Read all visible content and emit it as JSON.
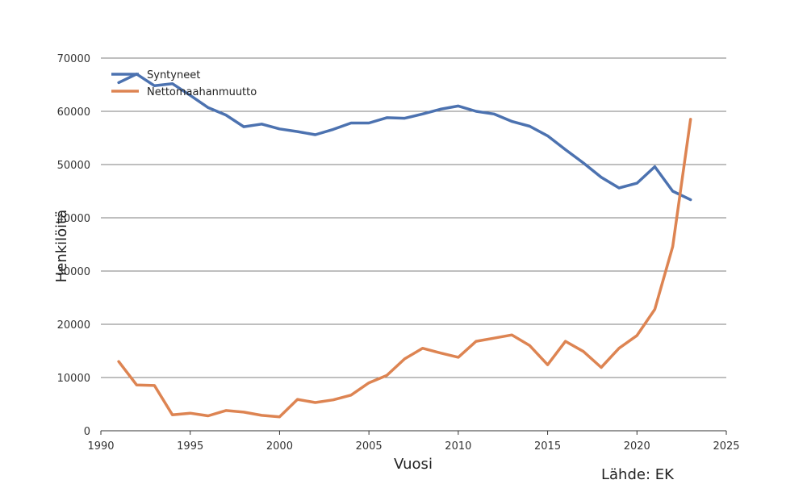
{
  "chart_data": {
    "type": "line",
    "xlabel": "Vuosi",
    "ylabel": "Henkilöitä",
    "source": "Lähde: EK",
    "xlim": [
      1990,
      2025
    ],
    "ylim": [
      0,
      70000
    ],
    "x_ticks": [
      1990,
      1995,
      2000,
      2005,
      2010,
      2015,
      2020,
      2025
    ],
    "y_ticks": [
      0,
      10000,
      20000,
      30000,
      40000,
      50000,
      60000,
      70000
    ],
    "grid": true,
    "legend_position": "top-left",
    "x": [
      1991,
      1992,
      1993,
      1994,
      1995,
      1996,
      1997,
      1998,
      1999,
      2000,
      2001,
      2002,
      2003,
      2004,
      2005,
      2006,
      2007,
      2008,
      2009,
      2010,
      2011,
      2012,
      2013,
      2014,
      2015,
      2016,
      2017,
      2018,
      2019,
      2020,
      2021,
      2022,
      2023
    ],
    "series": [
      {
        "name": "Syntyneet",
        "color": "#4c72b0",
        "values": [
          65400,
          67000,
          64800,
          65200,
          63000,
          60700,
          59300,
          57100,
          57600,
          56700,
          56200,
          55600,
          56600,
          57800,
          57800,
          58800,
          58700,
          59500,
          60400,
          61000,
          60000,
          59500,
          58100,
          57200,
          55400,
          52800,
          50300,
          47600,
          45600,
          46500,
          49600,
          45000,
          43400
        ]
      },
      {
        "name": "Nettomaahanmuutto",
        "color": "#dd8452",
        "values": [
          13000,
          8600,
          8500,
          3000,
          3300,
          2800,
          3800,
          3500,
          2900,
          2600,
          5900,
          5300,
          5800,
          6700,
          9000,
          10400,
          13500,
          15500,
          14600,
          13800,
          16800,
          17400,
          18000,
          16000,
          12400,
          16800,
          14900,
          11900,
          15500,
          17900,
          22800,
          34600,
          58500
        ]
      }
    ]
  }
}
